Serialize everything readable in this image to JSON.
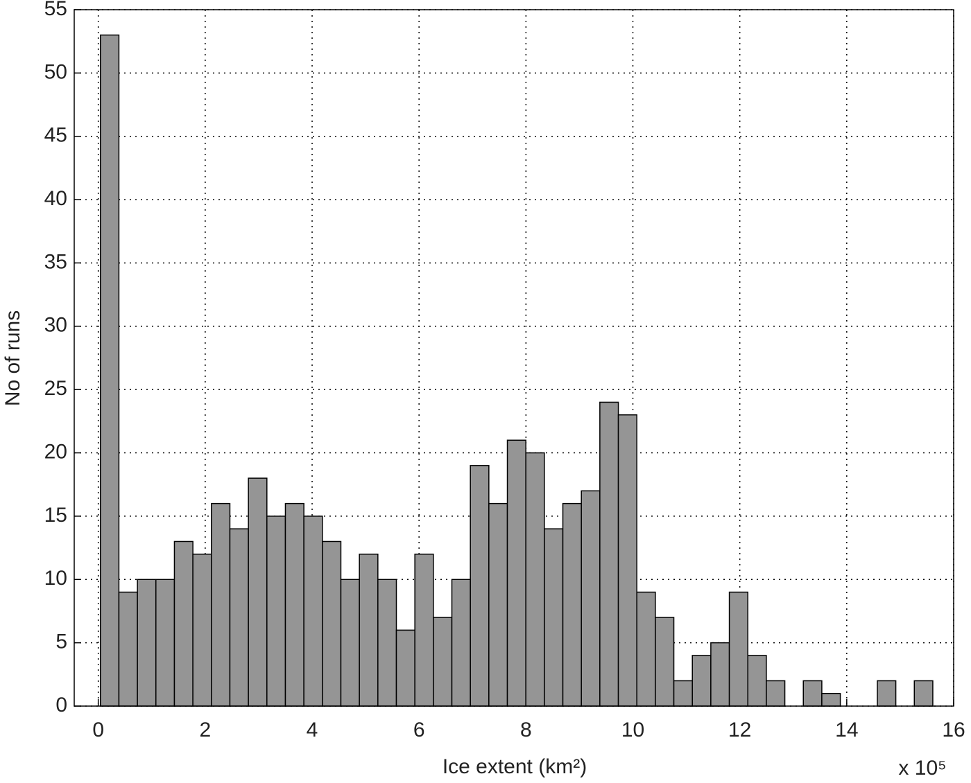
{
  "chart_data": {
    "type": "histogram",
    "xlabel": "Ice extent (km²)",
    "ylabel": "No of runs",
    "x_multiplier": "x 10⁵",
    "bins": [
      0.04,
      0.386,
      0.732,
      1.078,
      1.424,
      1.77,
      2.116,
      2.462,
      2.808,
      3.154,
      3.5,
      3.846,
      4.192,
      4.538,
      4.884,
      5.23,
      5.576,
      5.922,
      6.268,
      6.614,
      6.96,
      7.306,
      7.652,
      7.998,
      8.344,
      8.69,
      9.036,
      9.382,
      9.728,
      10.074,
      10.42,
      10.766,
      11.112,
      11.458,
      11.804,
      12.15,
      12.496,
      12.842,
      13.188,
      13.534,
      13.88,
      14.226,
      14.572,
      14.918,
      15.264,
      15.61
    ],
    "values": [
      53,
      9,
      10,
      10,
      13,
      12,
      16,
      14,
      18,
      15,
      16,
      15,
      13,
      10,
      12,
      10,
      6,
      12,
      7,
      10,
      19,
      16,
      21,
      20,
      14,
      16,
      17,
      24,
      23,
      9,
      7,
      2,
      4,
      5,
      9,
      4,
      2,
      0,
      2,
      1,
      0,
      0,
      2,
      0,
      2
    ],
    "color": "#959595",
    "edgecolor": "#000000",
    "xlim": [
      -0.45,
      16
    ],
    "ylim": [
      0,
      55
    ],
    "xticks": [
      0,
      2,
      4,
      6,
      8,
      10,
      12,
      14,
      16
    ],
    "yticks": [
      0,
      5,
      10,
      15,
      20,
      25,
      30,
      35,
      40,
      45,
      50,
      55
    ],
    "grid": true
  }
}
